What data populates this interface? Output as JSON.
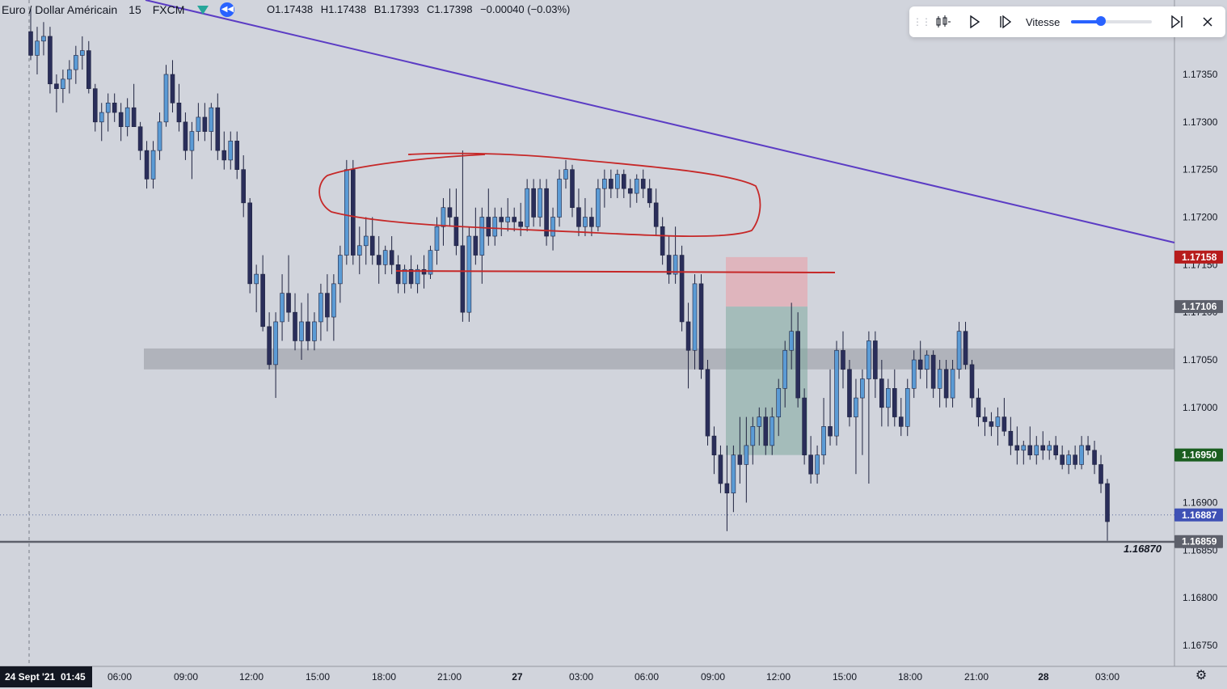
{
  "header": {
    "symbol": "Euro / Dollar Américain",
    "timeframe": "15",
    "source": "FXCM",
    "ohlc": {
      "open": "O1.17438",
      "high": "H1.17438",
      "low": "B1.17393",
      "close": "C1.17398",
      "change": "−0.00040 (−0.03%)"
    }
  },
  "replay": {
    "speed_label": "Vitesse",
    "speed_level": 0.37,
    "icons": [
      "grip-icon",
      "replay-select-bar-icon",
      "play-icon",
      "step-forward-icon",
      "jump-to-end-icon",
      "close-icon"
    ]
  },
  "colors": {
    "background": "#d1d4dc",
    "candle_up": "#5b9bd5",
    "candle_down": "#2a2e5a",
    "trendline": "#5b3cc4",
    "annotation": "#c62828",
    "zone": "#9598a1",
    "stop_zone": "#e8a0a8",
    "target_zone": "#7fa89f",
    "ray": "#5d606b",
    "label_red": "#b71c1c",
    "label_gray": "#5d606b",
    "label_green": "#1b5e20",
    "label_blue": "#3f51b5"
  },
  "price_axis": {
    "ticks": [
      "1.17350",
      "1.17300",
      "1.17250",
      "1.17200",
      "1.17150",
      "1.17100",
      "1.17050",
      "1.17000",
      "1.16950",
      "1.16900",
      "1.16850",
      "1.16800",
      "1.16750"
    ],
    "labels": [
      {
        "text": "1.17158",
        "price": 1.17158,
        "color": "#b71c1c"
      },
      {
        "text": "1.17106",
        "price": 1.17106,
        "color": "#5d606b"
      },
      {
        "text": "1.16950",
        "price": 1.1695,
        "color": "#1b5e20"
      },
      {
        "text": "1.16887",
        "price": 1.16887,
        "color": "#3f51b5"
      },
      {
        "text": "1.16859",
        "price": 1.16859,
        "color": "#5d606b"
      }
    ]
  },
  "time_axis": {
    "first_label": "24 Sept '21",
    "first_time": "01:45",
    "ticks": [
      "06:00",
      "09:00",
      "12:00",
      "15:00",
      "18:00",
      "21:00",
      "27",
      "03:00",
      "06:00",
      "09:00",
      "12:00",
      "15:00",
      "18:00",
      "21:00",
      "28",
      "03:00"
    ]
  },
  "ray_label": "1.16870",
  "chart_data": {
    "type": "candlestick",
    "symbol": "Euro / Dollar Américain",
    "interval": "15",
    "ylim": [
      1.167,
      1.174
    ],
    "candles": [
      [
        1.17395,
        1.1742,
        1.17365,
        1.1737
      ],
      [
        1.1737,
        1.174,
        1.1735,
        1.17385
      ],
      [
        1.17385,
        1.17405,
        1.1737,
        1.1739
      ],
      [
        1.1739,
        1.174,
        1.1733,
        1.1734
      ],
      [
        1.1734,
        1.1735,
        1.1731,
        1.17335
      ],
      [
        1.17335,
        1.17355,
        1.1732,
        1.17345
      ],
      [
        1.17345,
        1.17365,
        1.1733,
        1.17355
      ],
      [
        1.17355,
        1.1738,
        1.1734,
        1.1737
      ],
      [
        1.1737,
        1.1739,
        1.17355,
        1.17375
      ],
      [
        1.17375,
        1.17385,
        1.1733,
        1.17335
      ],
      [
        1.17335,
        1.1734,
        1.1729,
        1.173
      ],
      [
        1.173,
        1.1732,
        1.1728,
        1.1731
      ],
      [
        1.1731,
        1.1733,
        1.1729,
        1.1732
      ],
      [
        1.1732,
        1.1733,
        1.173,
        1.1731
      ],
      [
        1.1731,
        1.1732,
        1.1728,
        1.17295
      ],
      [
        1.17295,
        1.17325,
        1.17285,
        1.17315
      ],
      [
        1.17315,
        1.1734,
        1.173,
        1.17295
      ],
      [
        1.17295,
        1.173,
        1.1726,
        1.1727
      ],
      [
        1.1727,
        1.1728,
        1.1723,
        1.1724
      ],
      [
        1.1724,
        1.1728,
        1.1723,
        1.1727
      ],
      [
        1.1727,
        1.1731,
        1.1726,
        1.173
      ],
      [
        1.173,
        1.1736,
        1.17295,
        1.1735
      ],
      [
        1.1735,
        1.17365,
        1.1731,
        1.1732
      ],
      [
        1.1732,
        1.1734,
        1.1729,
        1.173
      ],
      [
        1.173,
        1.1731,
        1.1726,
        1.1727
      ],
      [
        1.1727,
        1.173,
        1.1724,
        1.1729
      ],
      [
        1.1729,
        1.1732,
        1.1728,
        1.17305
      ],
      [
        1.17305,
        1.1732,
        1.1728,
        1.1729
      ],
      [
        1.1729,
        1.1732,
        1.1727,
        1.17315
      ],
      [
        1.17315,
        1.1733,
        1.1726,
        1.1727
      ],
      [
        1.1727,
        1.1729,
        1.1725,
        1.1726
      ],
      [
        1.1726,
        1.1729,
        1.1725,
        1.1728
      ],
      [
        1.1728,
        1.1729,
        1.1724,
        1.1725
      ],
      [
        1.1725,
        1.17265,
        1.172,
        1.17215
      ],
      [
        1.17215,
        1.1722,
        1.1712,
        1.1713
      ],
      [
        1.1713,
        1.1715,
        1.171,
        1.1714
      ],
      [
        1.1714,
        1.1716,
        1.1708,
        1.17085
      ],
      [
        1.17085,
        1.171,
        1.1704,
        1.17045
      ],
      [
        1.17045,
        1.171,
        1.1701,
        1.1709
      ],
      [
        1.1709,
        1.1714,
        1.1707,
        1.1712
      ],
      [
        1.1712,
        1.1716,
        1.1709,
        1.171
      ],
      [
        1.171,
        1.1712,
        1.1706,
        1.1707
      ],
      [
        1.1707,
        1.1711,
        1.1705,
        1.1709
      ],
      [
        1.1709,
        1.1712,
        1.1706,
        1.1707
      ],
      [
        1.1707,
        1.171,
        1.1706,
        1.1709
      ],
      [
        1.1709,
        1.1713,
        1.1707,
        1.1712
      ],
      [
        1.1712,
        1.1714,
        1.1708,
        1.17095
      ],
      [
        1.17095,
        1.1714,
        1.1707,
        1.1713
      ],
      [
        1.1713,
        1.1717,
        1.1711,
        1.1716
      ],
      [
        1.1716,
        1.1726,
        1.1715,
        1.1725
      ],
      [
        1.1725,
        1.1726,
        1.1715,
        1.1716
      ],
      [
        1.1716,
        1.1719,
        1.1714,
        1.1717
      ],
      [
        1.1717,
        1.172,
        1.1715,
        1.1718
      ],
      [
        1.1718,
        1.172,
        1.1715,
        1.1716
      ],
      [
        1.1716,
        1.1718,
        1.1713,
        1.1715
      ],
      [
        1.1715,
        1.1717,
        1.1714,
        1.17165
      ],
      [
        1.17165,
        1.1718,
        1.1714,
        1.1715
      ],
      [
        1.1715,
        1.1716,
        1.1712,
        1.1713
      ],
      [
        1.1713,
        1.1715,
        1.1712,
        1.17145
      ],
      [
        1.17145,
        1.1716,
        1.17125,
        1.1713
      ],
      [
        1.1713,
        1.1715,
        1.1712,
        1.17145
      ],
      [
        1.17145,
        1.1716,
        1.17125,
        1.1714
      ],
      [
        1.1714,
        1.1717,
        1.17135,
        1.17165
      ],
      [
        1.17165,
        1.172,
        1.1715,
        1.1719
      ],
      [
        1.1719,
        1.1722,
        1.1717,
        1.1721
      ],
      [
        1.1721,
        1.1723,
        1.1719,
        1.172
      ],
      [
        1.172,
        1.1723,
        1.1716,
        1.1717
      ],
      [
        1.1717,
        1.1727,
        1.1709,
        1.171
      ],
      [
        1.171,
        1.1719,
        1.1709,
        1.1718
      ],
      [
        1.1718,
        1.1721,
        1.1715,
        1.1716
      ],
      [
        1.1716,
        1.1721,
        1.1713,
        1.172
      ],
      [
        1.172,
        1.1723,
        1.1717,
        1.1718
      ],
      [
        1.1718,
        1.1721,
        1.1717,
        1.172
      ],
      [
        1.172,
        1.1721,
        1.1718,
        1.17195
      ],
      [
        1.17195,
        1.1722,
        1.17185,
        1.172
      ],
      [
        1.172,
        1.1721,
        1.17185,
        1.17195
      ],
      [
        1.17195,
        1.17215,
        1.1718,
        1.1719
      ],
      [
        1.1719,
        1.1724,
        1.17185,
        1.1723
      ],
      [
        1.1723,
        1.1724,
        1.1719,
        1.172
      ],
      [
        1.172,
        1.1724,
        1.1719,
        1.1723
      ],
      [
        1.1723,
        1.1724,
        1.1717,
        1.1718
      ],
      [
        1.1718,
        1.1721,
        1.17165,
        1.172
      ],
      [
        1.172,
        1.1725,
        1.1719,
        1.1724
      ],
      [
        1.1724,
        1.1726,
        1.1723,
        1.1725
      ],
      [
        1.1725,
        1.17255,
        1.172,
        1.1721
      ],
      [
        1.1721,
        1.1723,
        1.1718,
        1.1719
      ],
      [
        1.1719,
        1.1722,
        1.1718,
        1.172
      ],
      [
        1.172,
        1.1721,
        1.1718,
        1.1719
      ],
      [
        1.1719,
        1.1724,
        1.17185,
        1.1723
      ],
      [
        1.1723,
        1.1725,
        1.1721,
        1.1724
      ],
      [
        1.1724,
        1.1725,
        1.1722,
        1.1723
      ],
      [
        1.1723,
        1.1725,
        1.1722,
        1.17245
      ],
      [
        1.17245,
        1.1725,
        1.1722,
        1.1723
      ],
      [
        1.1723,
        1.1724,
        1.1721,
        1.17225
      ],
      [
        1.17225,
        1.17245,
        1.17215,
        1.1724
      ],
      [
        1.1724,
        1.1725,
        1.1722,
        1.1723
      ],
      [
        1.1723,
        1.1724,
        1.1721,
        1.17215
      ],
      [
        1.17215,
        1.1723,
        1.1718,
        1.1719
      ],
      [
        1.1719,
        1.172,
        1.1715,
        1.1716
      ],
      [
        1.1716,
        1.1718,
        1.1713,
        1.1714
      ],
      [
        1.1714,
        1.1719,
        1.1713,
        1.1716
      ],
      [
        1.1716,
        1.1717,
        1.1708,
        1.1709
      ],
      [
        1.1709,
        1.1711,
        1.1702,
        1.1706
      ],
      [
        1.1706,
        1.1714,
        1.1704,
        1.1713
      ],
      [
        1.1713,
        1.1714,
        1.1703,
        1.1704
      ],
      [
        1.1704,
        1.1705,
        1.1696,
        1.1697
      ],
      [
        1.1697,
        1.1698,
        1.1693,
        1.1695
      ],
      [
        1.1695,
        1.1696,
        1.1691,
        1.1692
      ],
      [
        1.1692,
        1.1696,
        1.1687,
        1.1691
      ],
      [
        1.1691,
        1.1696,
        1.1689,
        1.1695
      ],
      [
        1.1695,
        1.1699,
        1.1692,
        1.1694
      ],
      [
        1.1694,
        1.1699,
        1.169,
        1.1696
      ],
      [
        1.1696,
        1.1699,
        1.1694,
        1.1698
      ],
      [
        1.1698,
        1.17,
        1.1696,
        1.1699
      ],
      [
        1.1699,
        1.17,
        1.1695,
        1.1696
      ],
      [
        1.1696,
        1.17,
        1.1695,
        1.1699
      ],
      [
        1.1699,
        1.1703,
        1.1697,
        1.1702
      ],
      [
        1.1702,
        1.1707,
        1.17,
        1.1706
      ],
      [
        1.1706,
        1.1711,
        1.1704,
        1.1708
      ],
      [
        1.1708,
        1.171,
        1.17,
        1.1701
      ],
      [
        1.1701,
        1.1702,
        1.1694,
        1.1695
      ],
      [
        1.1695,
        1.1697,
        1.1692,
        1.1693
      ],
      [
        1.1693,
        1.1696,
        1.1692,
        1.1695
      ],
      [
        1.1695,
        1.1701,
        1.1694,
        1.1698
      ],
      [
        1.1698,
        1.1704,
        1.1696,
        1.1697
      ],
      [
        1.1697,
        1.1707,
        1.1696,
        1.1706
      ],
      [
        1.1706,
        1.1708,
        1.1702,
        1.1704
      ],
      [
        1.1704,
        1.1705,
        1.1698,
        1.1699
      ],
      [
        1.1699,
        1.1703,
        1.1693,
        1.1701
      ],
      [
        1.1701,
        1.1704,
        1.1695,
        1.1703
      ],
      [
        1.1703,
        1.1708,
        1.1692,
        1.1707
      ],
      [
        1.1707,
        1.1708,
        1.1701,
        1.1703
      ],
      [
        1.1703,
        1.1705,
        1.1698,
        1.17
      ],
      [
        1.17,
        1.1703,
        1.1698,
        1.1702
      ],
      [
        1.1702,
        1.1704,
        1.1698,
        1.1699
      ],
      [
        1.1699,
        1.1701,
        1.1697,
        1.1698
      ],
      [
        1.1698,
        1.1703,
        1.1697,
        1.1702
      ],
      [
        1.1702,
        1.1706,
        1.1701,
        1.1705
      ],
      [
        1.1705,
        1.1707,
        1.1703,
        1.1704
      ],
      [
        1.1704,
        1.1706,
        1.1702,
        1.17055
      ],
      [
        1.17055,
        1.1706,
        1.1701,
        1.1702
      ],
      [
        1.1702,
        1.1705,
        1.17,
        1.1704
      ],
      [
        1.1704,
        1.1705,
        1.17,
        1.1701
      ],
      [
        1.1701,
        1.1705,
        1.17,
        1.1704
      ],
      [
        1.1704,
        1.1709,
        1.1703,
        1.1708
      ],
      [
        1.1708,
        1.1709,
        1.1704,
        1.17045
      ],
      [
        1.17045,
        1.1705,
        1.17,
        1.1701
      ],
      [
        1.1701,
        1.1702,
        1.1698,
        1.1699
      ],
      [
        1.1699,
        1.17,
        1.1697,
        1.16985
      ],
      [
        1.16985,
        1.16995,
        1.1697,
        1.1698
      ],
      [
        1.1698,
        1.17,
        1.1696,
        1.1699
      ],
      [
        1.1699,
        1.1701,
        1.1697,
        1.16975
      ],
      [
        1.16975,
        1.1699,
        1.1695,
        1.1696
      ],
      [
        1.1696,
        1.1698,
        1.1694,
        1.16955
      ],
      [
        1.16955,
        1.16965,
        1.1694,
        1.1696
      ],
      [
        1.1696,
        1.1698,
        1.16945,
        1.1695
      ],
      [
        1.1695,
        1.1697,
        1.1694,
        1.1696
      ],
      [
        1.1696,
        1.16975,
        1.16945,
        1.16955
      ],
      [
        1.16955,
        1.16965,
        1.16945,
        1.1696
      ],
      [
        1.1696,
        1.1697,
        1.16945,
        1.1695
      ],
      [
        1.1695,
        1.1696,
        1.16935,
        1.1694
      ],
      [
        1.1694,
        1.16955,
        1.1693,
        1.1695
      ],
      [
        1.1695,
        1.1696,
        1.16935,
        1.1694
      ],
      [
        1.1694,
        1.1697,
        1.16935,
        1.1696
      ],
      [
        1.1696,
        1.1697,
        1.1695,
        1.16955
      ],
      [
        1.16955,
        1.16965,
        1.1693,
        1.1694
      ],
      [
        1.1694,
        1.1695,
        1.1691,
        1.1692
      ],
      [
        1.1692,
        1.16925,
        1.1686,
        1.1688
      ]
    ]
  }
}
